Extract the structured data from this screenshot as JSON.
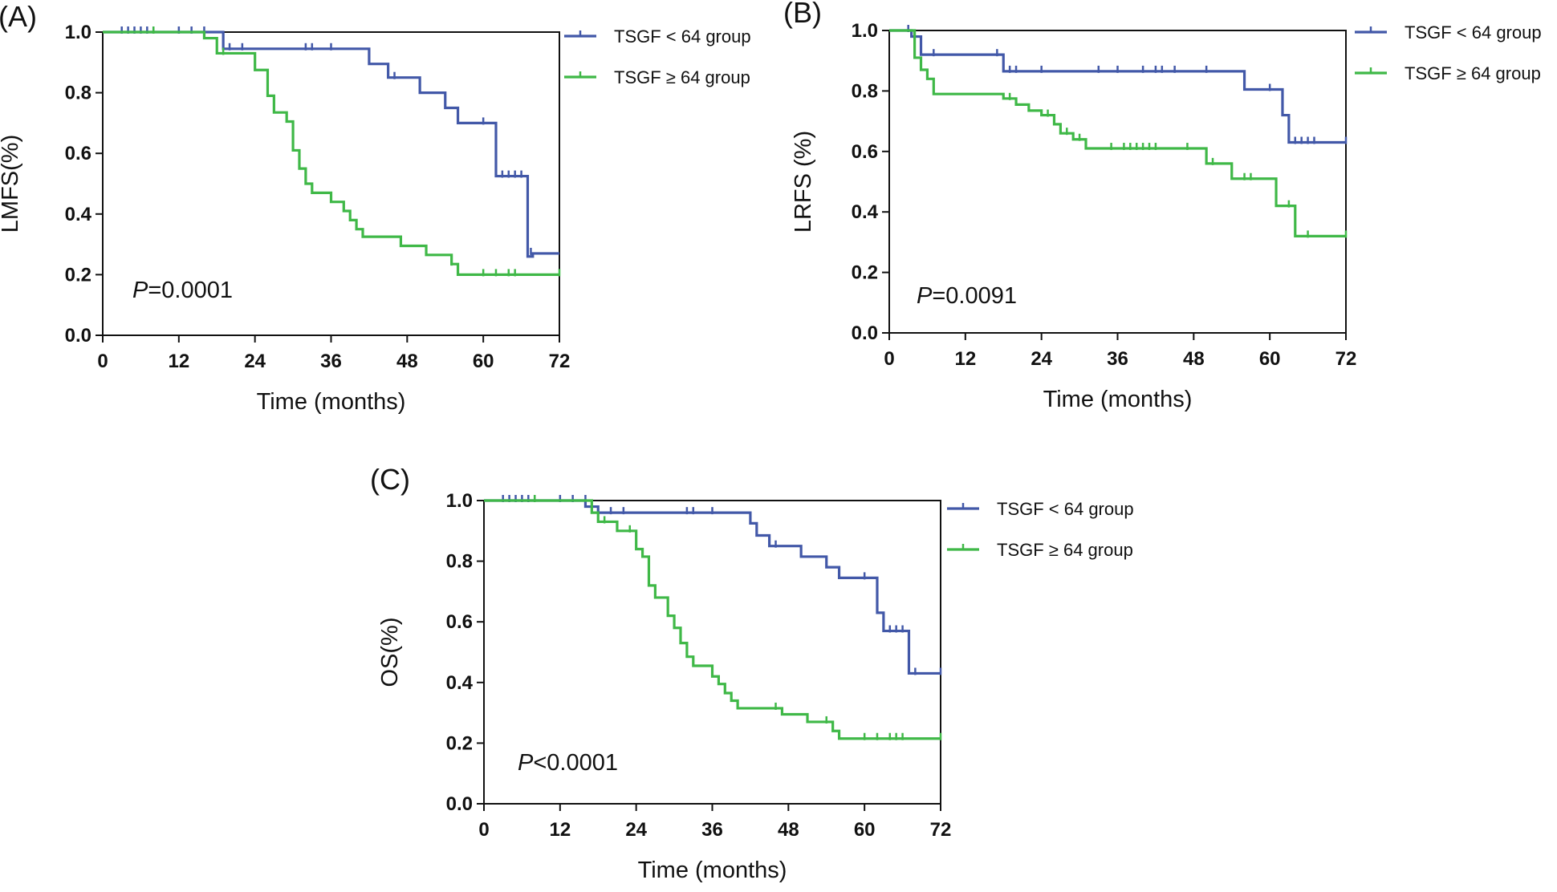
{
  "chart_data": [
    {
      "type": "line",
      "panel_label": "(A)",
      "xlabel": "Time (months)",
      "ylabel": "LMFS(%)",
      "xlim": [
        0,
        72
      ],
      "ylim": [
        0.0,
        1.0
      ],
      "xticks": [
        0,
        12,
        24,
        36,
        48,
        60,
        72
      ],
      "xtick_labels": [
        "0",
        "12",
        "24",
        "36",
        "48",
        "60",
        "72"
      ],
      "yticks": [
        0.0,
        0.2,
        0.4,
        0.6,
        0.8,
        1.0
      ],
      "ytick_labels": [
        "0.0",
        "0.2",
        "0.4",
        "0.6",
        "0.8",
        "1.0"
      ],
      "p_label": "P",
      "p_text": "=0.0001",
      "legend_position": "right",
      "series": [
        {
          "name": "TSGF < 64 group",
          "color": "#4258a8",
          "steps": [
            [
              0,
              1.0
            ],
            [
              19,
              0.945
            ],
            [
              42,
              0.895
            ],
            [
              45,
              0.85
            ],
            [
              50,
              0.8
            ],
            [
              54,
              0.75
            ],
            [
              56,
              0.7
            ],
            [
              62,
              0.525
            ],
            [
              67,
              0.26
            ],
            [
              67.8,
              0.27
            ]
          ],
          "censored": [
            [
              3,
              1.0
            ],
            [
              4,
              1.0
            ],
            [
              5,
              1.0
            ],
            [
              6,
              1.0
            ],
            [
              7,
              1.0
            ],
            [
              8,
              1.0
            ],
            [
              12,
              1.0
            ],
            [
              14,
              1.0
            ],
            [
              16,
              1.0
            ],
            [
              20,
              0.945
            ],
            [
              22,
              0.945
            ],
            [
              32,
              0.945
            ],
            [
              33,
              0.945
            ],
            [
              36,
              0.945
            ],
            [
              46,
              0.85
            ],
            [
              60,
              0.7
            ],
            [
              63,
              0.525
            ],
            [
              64,
              0.525
            ],
            [
              65,
              0.525
            ],
            [
              66,
              0.525
            ],
            [
              67.5,
              0.27
            ]
          ]
        },
        {
          "name": "TSGF ≥ 64 group",
          "color": "#3fb847",
          "steps": [
            [
              0,
              1.0
            ],
            [
              16,
              0.98
            ],
            [
              18,
              0.93
            ],
            [
              24,
              0.875
            ],
            [
              26,
              0.79
            ],
            [
              27,
              0.735
            ],
            [
              29,
              0.705
            ],
            [
              30,
              0.61
            ],
            [
              31,
              0.55
            ],
            [
              32,
              0.5
            ],
            [
              33,
              0.47
            ],
            [
              36,
              0.44
            ],
            [
              38,
              0.41
            ],
            [
              39,
              0.38
            ],
            [
              40,
              0.35
            ],
            [
              41,
              0.325
            ],
            [
              47,
              0.295
            ],
            [
              51,
              0.265
            ],
            [
              55,
              0.235
            ],
            [
              56,
              0.2
            ]
          ],
          "censored": [
            [
              8,
              1.0
            ],
            [
              19,
              0.93
            ],
            [
              55,
              0.235
            ],
            [
              60,
              0.2
            ],
            [
              62,
              0.2
            ],
            [
              64,
              0.2
            ],
            [
              65,
              0.2
            ],
            [
              72,
              0.2
            ]
          ]
        }
      ]
    },
    {
      "type": "line",
      "panel_label": "(B)",
      "xlabel": "Time (months)",
      "ylabel": "LRFS (%)",
      "xlim": [
        0,
        72
      ],
      "ylim": [
        0.0,
        1.0
      ],
      "xticks": [
        0,
        12,
        24,
        36,
        48,
        60,
        72
      ],
      "xtick_labels": [
        "0",
        "12",
        "24",
        "36",
        "48",
        "60",
        "72"
      ],
      "yticks": [
        0.0,
        0.2,
        0.4,
        0.6,
        0.8,
        1.0
      ],
      "ytick_labels": [
        "0.0",
        "0.2",
        "0.4",
        "0.6",
        "0.8",
        "1.0"
      ],
      "p_label": "P",
      "p_text": "=0.0091",
      "legend_position": "right",
      "series": [
        {
          "name": "TSGF < 64 group",
          "color": "#4258a8",
          "steps": [
            [
              0,
              1.0
            ],
            [
              3.5,
              0.98
            ],
            [
              5,
              0.92
            ],
            [
              18,
              0.865
            ],
            [
              56,
              0.805
            ],
            [
              62,
              0.72
            ],
            [
              63,
              0.63
            ]
          ],
          "censored": [
            [
              3,
              1.0
            ],
            [
              7,
              0.92
            ],
            [
              17,
              0.92
            ],
            [
              19,
              0.865
            ],
            [
              20,
              0.865
            ],
            [
              24,
              0.865
            ],
            [
              33,
              0.865
            ],
            [
              36,
              0.865
            ],
            [
              40,
              0.865
            ],
            [
              42,
              0.865
            ],
            [
              43,
              0.865
            ],
            [
              45,
              0.865
            ],
            [
              50,
              0.865
            ],
            [
              60,
              0.805
            ],
            [
              64,
              0.63
            ],
            [
              65,
              0.63
            ],
            [
              66,
              0.63
            ],
            [
              67,
              0.63
            ],
            [
              72,
              0.63
            ]
          ]
        },
        {
          "name": "TSGF ≥ 64 group",
          "color": "#3fb847",
          "steps": [
            [
              0,
              1.0
            ],
            [
              4,
              0.91
            ],
            [
              5,
              0.87
            ],
            [
              6,
              0.84
            ],
            [
              7,
              0.79
            ],
            [
              18,
              0.775
            ],
            [
              20,
              0.755
            ],
            [
              22,
              0.735
            ],
            [
              24,
              0.72
            ],
            [
              26,
              0.69
            ],
            [
              27,
              0.66
            ],
            [
              29,
              0.64
            ],
            [
              31,
              0.61
            ],
            [
              50,
              0.56
            ],
            [
              54,
              0.51
            ],
            [
              61,
              0.42
            ],
            [
              64,
              0.32
            ]
          ],
          "censored": [
            [
              19,
              0.775
            ],
            [
              25,
              0.72
            ],
            [
              28,
              0.66
            ],
            [
              30,
              0.64
            ],
            [
              35,
              0.61
            ],
            [
              37,
              0.61
            ],
            [
              38,
              0.61
            ],
            [
              39,
              0.61
            ],
            [
              40,
              0.61
            ],
            [
              41,
              0.61
            ],
            [
              42,
              0.61
            ],
            [
              47,
              0.61
            ],
            [
              51,
              0.56
            ],
            [
              56,
              0.51
            ],
            [
              57,
              0.51
            ],
            [
              63,
              0.42
            ],
            [
              66,
              0.32
            ],
            [
              72,
              0.32
            ]
          ]
        }
      ]
    },
    {
      "type": "line",
      "panel_label": "(C)",
      "xlabel": "Time (months)",
      "ylabel": "OS(%)",
      "xlim": [
        0,
        72
      ],
      "ylim": [
        0.0,
        1.0
      ],
      "xticks": [
        0,
        12,
        24,
        36,
        48,
        60,
        72
      ],
      "xtick_labels": [
        "0",
        "12",
        "24",
        "36",
        "48",
        "60",
        "72"
      ],
      "yticks": [
        0.0,
        0.2,
        0.4,
        0.6,
        0.8,
        1.0
      ],
      "ytick_labels": [
        "0.0",
        "0.2",
        "0.4",
        "0.6",
        "0.8",
        "1.0"
      ],
      "p_label": "P",
      "p_text": "<0.0001",
      "legend_position": "right",
      "series": [
        {
          "name": "TSGF < 64 group",
          "color": "#4258a8",
          "steps": [
            [
              0,
              1.0
            ],
            [
              16,
              0.98
            ],
            [
              18,
              0.96
            ],
            [
              42,
              0.925
            ],
            [
              43,
              0.885
            ],
            [
              45,
              0.85
            ],
            [
              50,
              0.815
            ],
            [
              54,
              0.78
            ],
            [
              56,
              0.745
            ],
            [
              62,
              0.63
            ],
            [
              63,
              0.57
            ],
            [
              67,
              0.43
            ]
          ],
          "censored": [
            [
              3,
              1.0
            ],
            [
              4,
              1.0
            ],
            [
              5,
              1.0
            ],
            [
              6,
              1.0
            ],
            [
              7,
              1.0
            ],
            [
              8,
              1.0
            ],
            [
              12,
              1.0
            ],
            [
              14,
              1.0
            ],
            [
              16,
              1.0
            ],
            [
              20,
              0.96
            ],
            [
              22,
              0.96
            ],
            [
              32,
              0.96
            ],
            [
              33,
              0.96
            ],
            [
              36,
              0.96
            ],
            [
              46,
              0.85
            ],
            [
              60,
              0.745
            ],
            [
              64,
              0.57
            ],
            [
              65,
              0.57
            ],
            [
              66,
              0.57
            ],
            [
              68,
              0.43
            ],
            [
              72,
              0.43
            ]
          ]
        },
        {
          "name": "TSGF ≥ 64 group",
          "color": "#3fb847",
          "steps": [
            [
              0,
              1.0
            ],
            [
              17,
              0.96
            ],
            [
              18,
              0.93
            ],
            [
              21,
              0.9
            ],
            [
              24,
              0.84
            ],
            [
              25,
              0.815
            ],
            [
              26,
              0.72
            ],
            [
              27,
              0.68
            ],
            [
              29,
              0.62
            ],
            [
              30,
              0.58
            ],
            [
              31,
              0.53
            ],
            [
              32,
              0.485
            ],
            [
              33,
              0.455
            ],
            [
              36,
              0.42
            ],
            [
              37,
              0.395
            ],
            [
              38,
              0.365
            ],
            [
              39,
              0.34
            ],
            [
              40,
              0.315
            ],
            [
              47,
              0.295
            ],
            [
              51,
              0.27
            ],
            [
              55,
              0.24
            ],
            [
              56,
              0.215
            ]
          ],
          "censored": [
            [
              8,
              1.0
            ],
            [
              19,
              0.93
            ],
            [
              23,
              0.9
            ],
            [
              46,
              0.315
            ],
            [
              54,
              0.27
            ],
            [
              60,
              0.215
            ],
            [
              62,
              0.215
            ],
            [
              64,
              0.215
            ],
            [
              65,
              0.215
            ],
            [
              66,
              0.215
            ],
            [
              72,
              0.215
            ]
          ]
        }
      ]
    }
  ]
}
